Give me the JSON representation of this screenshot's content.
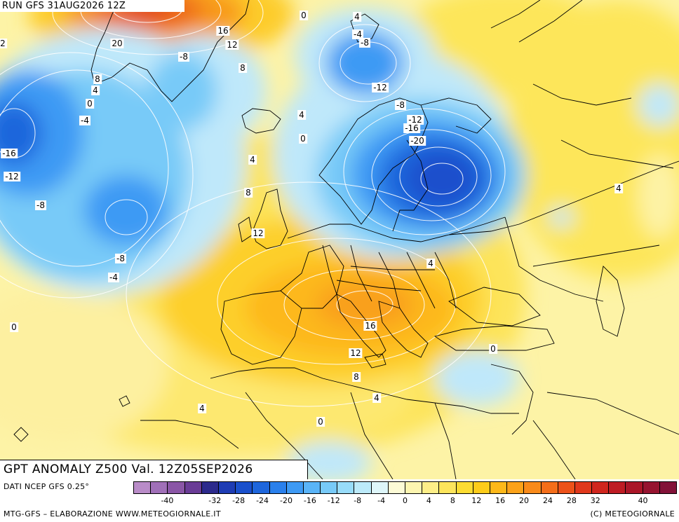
{
  "header": {
    "run_label": "RUN GFS 31AUG2026 12Z",
    "title": "GPT ANOMALY Z500 Val. 12Z05SEP2026"
  },
  "footer": {
    "source": "DATI NCEP GFS 0.25°",
    "credits_left": "MTG-GFS – ELABORAZIONE WWW.METEOGIORNALE.IT",
    "credits_right": "(C) METEOGIORNALE"
  },
  "legend": {
    "colors": [
      "#b98cc8",
      "#a070b8",
      "#8a56a6",
      "#6a3c96",
      "#2c2a8c",
      "#1e3cb4",
      "#1a50cc",
      "#1e66dc",
      "#2a80ec",
      "#3e9af4",
      "#5ab4f8",
      "#78caf8",
      "#98dcfa",
      "#bceafa",
      "#def6fa",
      "#fdfbd6",
      "#fdf5b0",
      "#fdee88",
      "#fde55c",
      "#fddc32",
      "#fdcc1a",
      "#fdb81a",
      "#fca21a",
      "#f98a1a",
      "#f46e1a",
      "#ec521a",
      "#e0381c",
      "#d0261e",
      "#be1c24",
      "#aa1628",
      "#961430",
      "#821238"
    ],
    "ticks": [
      "-40",
      "-32",
      "-28",
      "-24",
      "-20",
      "-16",
      "-12",
      "-8",
      "-4",
      "0",
      "4",
      "8",
      "12",
      "16",
      "20",
      "24",
      "28",
      "32",
      "40"
    ]
  },
  "contour_labels": [
    {
      "text": "0"
    },
    {
      "text": "4"
    },
    {
      "text": "16"
    },
    {
      "text": "20"
    },
    {
      "text": "12"
    },
    {
      "text": "-4"
    },
    {
      "text": "-8"
    },
    {
      "text": "-8"
    },
    {
      "text": "8"
    },
    {
      "text": "2"
    },
    {
      "text": "8"
    },
    {
      "text": "4"
    },
    {
      "text": "0"
    },
    {
      "text": "-4"
    },
    {
      "text": "-12"
    },
    {
      "text": "-8"
    },
    {
      "text": "4"
    },
    {
      "text": "0"
    },
    {
      "text": "-12"
    },
    {
      "text": "-16"
    },
    {
      "text": "-20"
    },
    {
      "text": "-16"
    },
    {
      "text": "-12"
    },
    {
      "text": "4"
    },
    {
      "text": "-8"
    },
    {
      "text": "8"
    },
    {
      "text": "12"
    },
    {
      "text": "-8"
    },
    {
      "text": "-4"
    },
    {
      "text": "4"
    },
    {
      "text": "4"
    },
    {
      "text": "0"
    },
    {
      "text": "16"
    },
    {
      "text": "12"
    },
    {
      "text": "0"
    },
    {
      "text": "8"
    },
    {
      "text": "4"
    },
    {
      "text": "4"
    },
    {
      "text": "0"
    }
  ]
}
